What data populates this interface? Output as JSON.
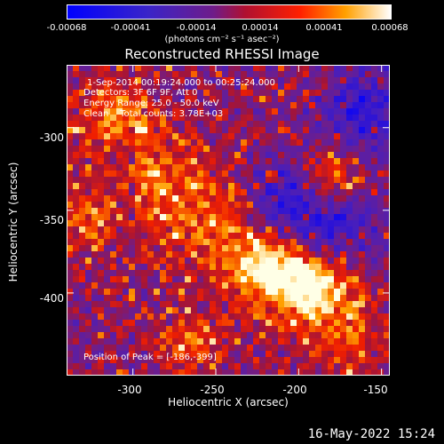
{
  "colorbar": {
    "ticks": [
      "-0.00068",
      "-0.00041",
      "-0.00014",
      "0.00014",
      "0.00041",
      "0.00068"
    ],
    "units": "(photons cm⁻² s⁻¹ asec⁻²)"
  },
  "title": "Reconstructed RHESSI Image",
  "annotations": {
    "time": "1-Sep-2014 00:19:24.000 to 00:25:24.000",
    "detectors": "Detectors: 3F 6F 9F, Att 0",
    "energy": "Energy Range: 25.0 - 50.0 keV",
    "clean": "Clean    Total counts: 3.78E+03",
    "peak": "Position of Peak = [-186,-399]"
  },
  "footer": "16-May-2022 15:24",
  "chart_data": {
    "type": "heatmap",
    "xlabel": "Heliocentric X (arcsec)",
    "ylabel": "Heliocentric Y (arcsec)",
    "x_ticks": [
      "-300",
      "-250",
      "-200",
      "-150"
    ],
    "y_ticks": [
      "-300",
      "-350",
      "-400"
    ],
    "xlim": [
      -340,
      -145
    ],
    "ylim": [
      -450,
      -262
    ],
    "clim": [
      -0.00068,
      0.00068
    ],
    "colormap": "rhessi-blue-red-yellow",
    "peak_position": [
      -186,
      -399
    ],
    "bright_regions": [
      {
        "x": -180,
        "y": -330,
        "level": "high"
      },
      {
        "x": -220,
        "y": -385,
        "level": "high"
      },
      {
        "x": -195,
        "y": -395,
        "level": "highest"
      },
      {
        "x": -325,
        "y": -355,
        "level": "medium"
      },
      {
        "x": -310,
        "y": -290,
        "level": "medium"
      },
      {
        "x": -265,
        "y": -430,
        "level": "medium"
      }
    ],
    "dark_regions": [
      {
        "x": -160,
        "y": -290,
        "level": "low"
      },
      {
        "x": -210,
        "y": -345,
        "level": "low"
      },
      {
        "x": -180,
        "y": -360,
        "level": "low"
      }
    ]
  }
}
